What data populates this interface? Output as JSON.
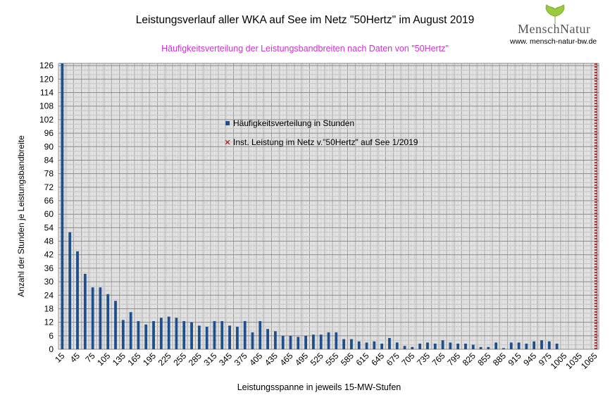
{
  "chart_data": {
    "type": "bar",
    "title": "Leistungsverlauf aller WKA auf See im Netz \"50Hertz\" im August 2019",
    "subtitle": "Häufigkeitsverteilung der Leistungsbandbreiten nach Daten von \"50Hertz\"",
    "xlabel": "Leistungsspanne in jeweils 15-MW-Stufen",
    "ylabel": "Anzahl der Stunden je Leistungsbandbreite",
    "ylim": [
      0,
      127
    ],
    "yticks": [
      0,
      6,
      12,
      18,
      24,
      30,
      36,
      42,
      48,
      54,
      60,
      66,
      72,
      78,
      84,
      90,
      96,
      102,
      108,
      114,
      120,
      126
    ],
    "categories": [
      15,
      30,
      45,
      60,
      75,
      90,
      105,
      120,
      135,
      150,
      165,
      180,
      195,
      210,
      225,
      240,
      255,
      270,
      285,
      300,
      315,
      330,
      345,
      360,
      375,
      390,
      405,
      420,
      435,
      450,
      465,
      480,
      495,
      510,
      525,
      540,
      555,
      570,
      585,
      600,
      615,
      630,
      645,
      660,
      675,
      690,
      705,
      720,
      735,
      750,
      765,
      780,
      795,
      810,
      825,
      840,
      855,
      870,
      885,
      900,
      915,
      930,
      945,
      960,
      975,
      990,
      1005,
      1020,
      1035,
      1050,
      1065
    ],
    "xtick_labels": [
      "15",
      "45",
      "75",
      "105",
      "135",
      "165",
      "195",
      "225",
      "255",
      "285",
      "315",
      "345",
      "375",
      "405",
      "435",
      "465",
      "495",
      "525",
      "555",
      "585",
      "615",
      "645",
      "675",
      "705",
      "735",
      "765",
      "795",
      "825",
      "855",
      "885",
      "915",
      "945",
      "975",
      "1005",
      "1035",
      "1065"
    ],
    "series": [
      {
        "name": "Häufigkeitsverteilung in Stunden",
        "color": "#1f4e8c",
        "values": [
          127,
          52,
          43.5,
          33.5,
          27.5,
          27.5,
          24.5,
          21.5,
          13,
          16.5,
          12.5,
          11,
          12.5,
          14,
          14.5,
          14,
          12.5,
          12,
          10.5,
          10,
          12.5,
          12.5,
          10.5,
          10,
          12.5,
          7.5,
          12.5,
          9,
          8,
          6,
          6,
          5.5,
          6,
          6.5,
          6.5,
          7.5,
          7.5,
          4.5,
          4.5,
          3.5,
          3,
          3.5,
          2.5,
          5,
          3,
          1.5,
          1,
          2.5,
          3,
          2.5,
          4,
          3,
          2.5,
          2.5,
          2,
          1,
          1,
          3,
          0.5,
          3,
          3,
          2.5,
          3.5,
          4,
          3.5,
          2.5,
          0,
          0,
          0,
          0,
          0
        ]
      },
      {
        "name": "Inst. Leistung im Netz v.\"50Hertz\" auf See 1/2019",
        "color": "#b03030",
        "x": 1065
      }
    ],
    "grid": true,
    "legend": "center"
  },
  "logo": {
    "brand": "MenschNatur",
    "brand_left": "Mensch",
    "brand_right": "Natur",
    "url": "www. mensch-natur-bw.de"
  }
}
